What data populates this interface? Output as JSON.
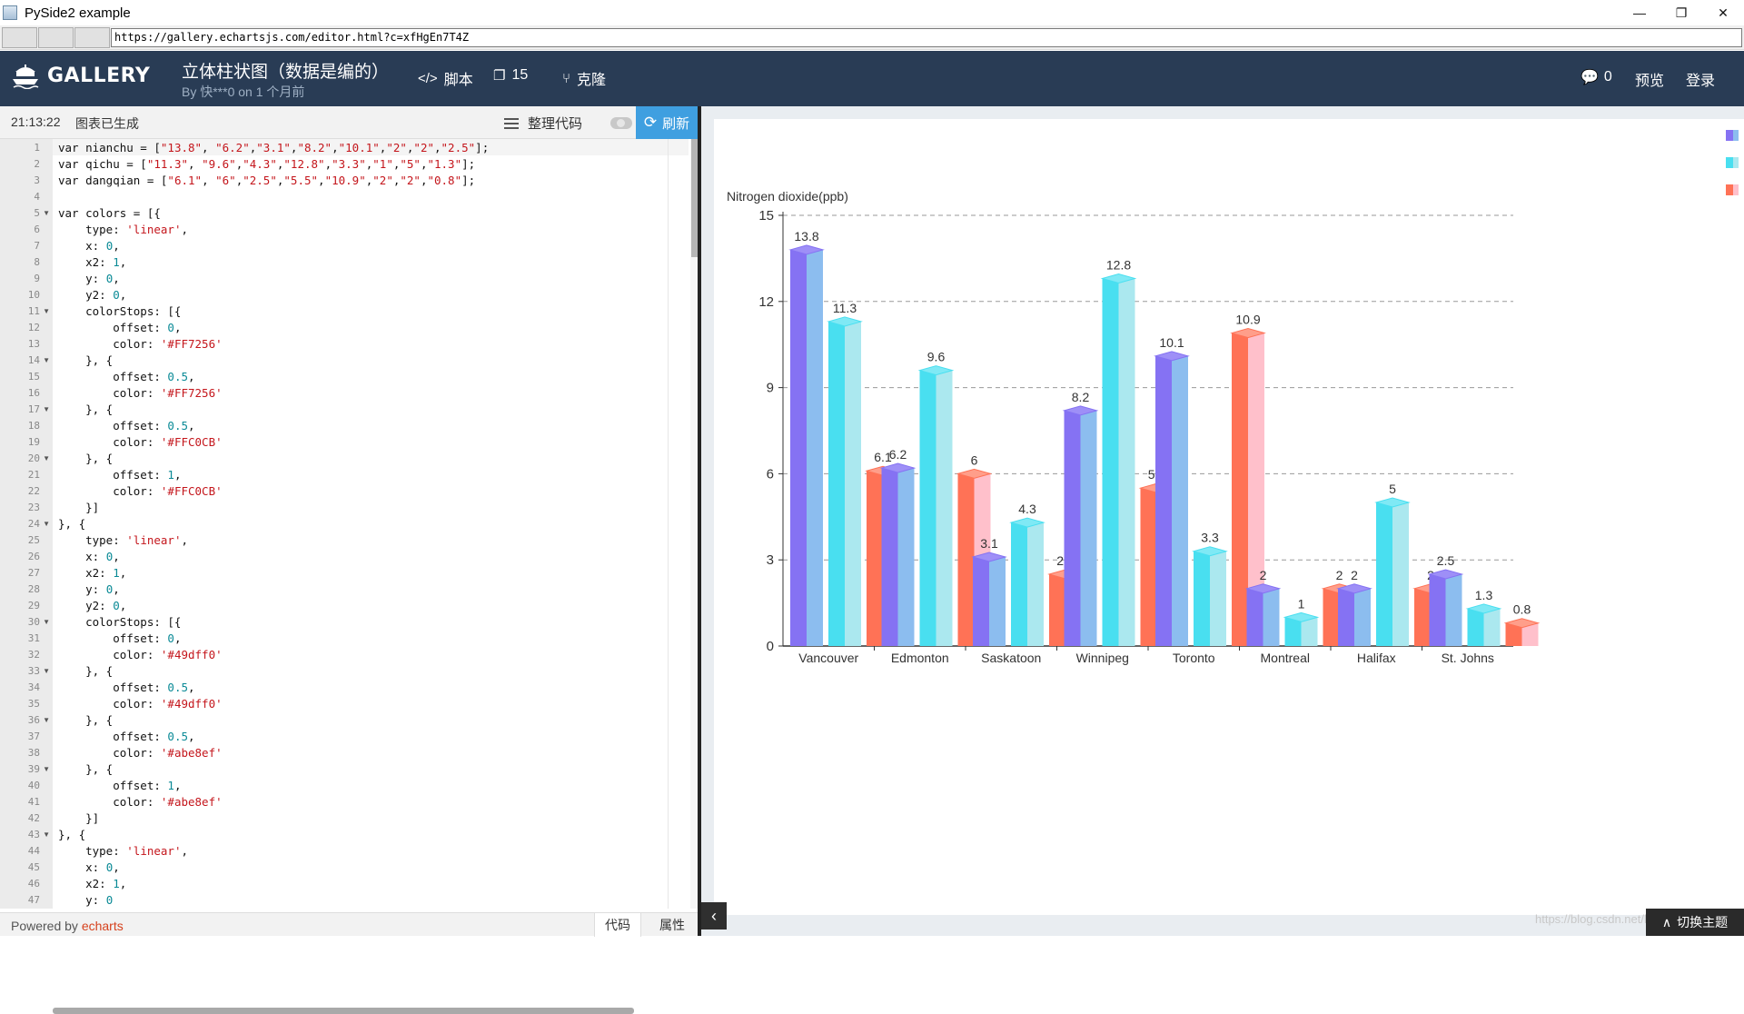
{
  "window": {
    "title": "PySide2 example",
    "minimize": "—",
    "restore": "❐",
    "close": "✕"
  },
  "browser": {
    "url": "https://gallery.echartsjs.com/editor.html?c=xfHgEn7T4Z"
  },
  "header": {
    "logo": "GALLERY",
    "title": "立体柱状图（数据是编的）",
    "subtitle": "By 快***0 on 1 个月前",
    "script_label": "脚本",
    "fork_count": "15",
    "clone_label": "克隆",
    "comment_count": "0",
    "preview_label": "预览",
    "login_label": "登录"
  },
  "toolbar": {
    "time": "21:13:22",
    "status": "图表已生成",
    "format_label": "整理代码",
    "refresh_label": "刷新"
  },
  "footer": {
    "powered_prefix": "Powered by ",
    "powered_brand": "echarts",
    "tab_code": "代码",
    "tab_props": "属性"
  },
  "code_lines": [
    "var nianchu = [\"13.8\", \"6.2\",\"3.1\",\"8.2\",\"10.1\",\"2\",\"2\",\"2.5\"];",
    "var qichu = [\"11.3\", \"9.6\",\"4.3\",\"12.8\",\"3.3\",\"1\",\"5\",\"1.3\"];",
    "var dangqian = [\"6.1\", \"6\",\"2.5\",\"5.5\",\"10.9\",\"2\",\"2\",\"0.8\"];",
    "",
    "var colors = [{",
    "    type: 'linear',",
    "    x: 0,",
    "    x2: 1,",
    "    y: 0,",
    "    y2: 0,",
    "    colorStops: [{",
    "        offset: 0,",
    "        color: '#FF7256'",
    "    }, {",
    "        offset: 0.5,",
    "        color: '#FF7256'",
    "    }, {",
    "        offset: 0.5,",
    "        color: '#FFC0CB'",
    "    }, {",
    "        offset: 1,",
    "        color: '#FFC0CB'",
    "    }]",
    "}, {",
    "    type: 'linear',",
    "    x: 0,",
    "    x2: 1,",
    "    y: 0,",
    "    y2: 0,",
    "    colorStops: [{",
    "        offset: 0,",
    "        color: '#49dff0'",
    "    }, {",
    "        offset: 0.5,",
    "        color: '#49dff0'",
    "    }, {",
    "        offset: 0.5,",
    "        color: '#abe8ef'",
    "    }, {",
    "        offset: 1,",
    "        color: '#abe8ef'",
    "    }]",
    "}, {",
    "    type: 'linear',",
    "    x: 0,",
    "    x2: 1,",
    "    y: 0"
  ],
  "fold_lines": [
    5,
    11,
    14,
    17,
    20,
    24,
    30,
    33,
    36,
    39,
    43
  ],
  "chart_data": {
    "type": "bar",
    "ylabel": "Nitrogen dioxide(ppb)",
    "ylim": [
      0,
      15
    ],
    "yticks": [
      "0",
      "3",
      "6",
      "9",
      "12",
      "15"
    ],
    "grid": "dashed horizontal",
    "legend_position": "top-right",
    "categories": [
      "Vancouver",
      "Edmonton",
      "Saskatoon",
      "Winnipeg",
      "Toronto",
      "Montreal",
      "Halifax",
      "St. Johns"
    ],
    "series": [
      {
        "values": [
          13.8,
          6.2,
          3.1,
          8.2,
          10.1,
          2,
          2,
          2.5
        ],
        "color_front": "#8572f3",
        "color_side": "#8cbdef",
        "color_top": "#9e8ff7"
      },
      {
        "values": [
          11.3,
          9.6,
          4.3,
          12.8,
          3.3,
          1,
          5,
          1.3
        ],
        "color_front": "#49dff0",
        "color_side": "#abe8ef",
        "color_top": "#7fe9f5"
      },
      {
        "values": [
          6.1,
          6,
          2.5,
          5.5,
          10.9,
          2,
          2,
          0.8
        ],
        "color_front": "#FF7256",
        "color_side": "#FFC0CB",
        "color_top": "#ff9e8a"
      }
    ],
    "value_labels": [
      [
        "13.8",
        "6.2",
        "3.1",
        "8.2",
        "10.1",
        "2",
        "2",
        "2.5"
      ],
      [
        "11.3",
        "9.6",
        "4.3",
        "12.8",
        "3.3",
        "1",
        "5",
        "1.3"
      ],
      [
        "6.1",
        "6",
        "2.5",
        "5.5",
        "10.9",
        "2",
        "2",
        "0.8"
      ]
    ]
  },
  "theme_button": "切换主题",
  "watermark": "https://blog.csdn.net/hankbank"
}
